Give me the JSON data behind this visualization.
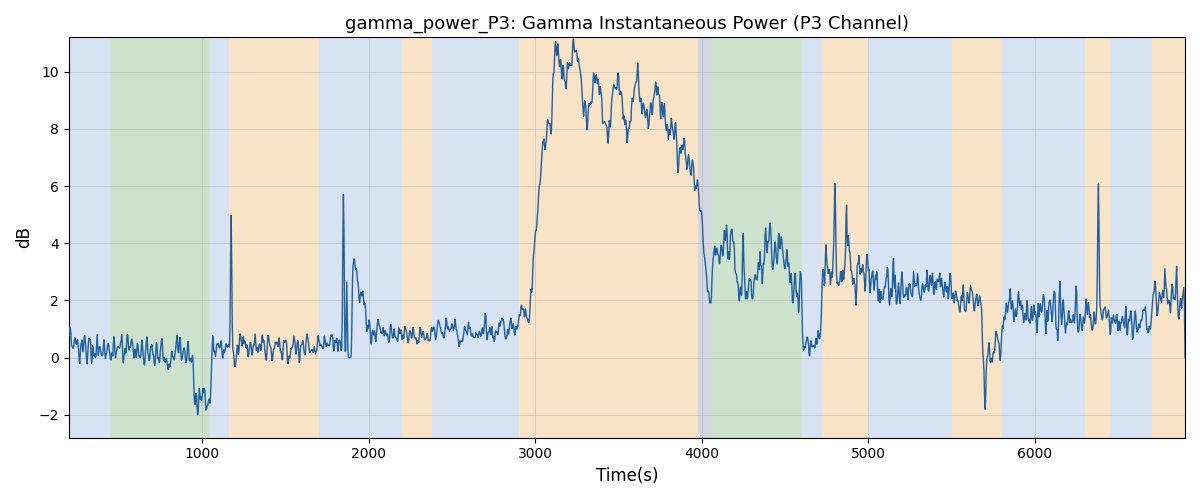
{
  "title": "gamma_power_P3: Gamma Instantaneous Power (P3 Channel)",
  "xlabel": "Time(s)",
  "ylabel": "dB",
  "xlim": [
    200,
    6900
  ],
  "ylim": [
    -2.8,
    11.2
  ],
  "yticks": [
    -2,
    0,
    2,
    4,
    6,
    8,
    10
  ],
  "xticks": [
    1000,
    2000,
    3000,
    4000,
    5000,
    6000
  ],
  "line_color": "#2060a0",
  "line_width": 1.0,
  "background_color": "#ffffff",
  "grid_color": "#b0b0b0",
  "shade_regions": [
    {
      "start": 200,
      "end": 450,
      "color": "#b0c8e8",
      "alpha": 0.5
    },
    {
      "start": 450,
      "end": 1050,
      "color": "#90c090",
      "alpha": 0.45
    },
    {
      "start": 1050,
      "end": 1160,
      "color": "#b0c8e8",
      "alpha": 0.5
    },
    {
      "start": 1160,
      "end": 1700,
      "color": "#f5c890",
      "alpha": 0.5
    },
    {
      "start": 1700,
      "end": 2200,
      "color": "#b0c8e8",
      "alpha": 0.5
    },
    {
      "start": 2200,
      "end": 2380,
      "color": "#f5c890",
      "alpha": 0.5
    },
    {
      "start": 2380,
      "end": 2900,
      "color": "#b0c8e8",
      "alpha": 0.5
    },
    {
      "start": 2900,
      "end": 3100,
      "color": "#f5c890",
      "alpha": 0.5
    },
    {
      "start": 3100,
      "end": 3980,
      "color": "#f5c890",
      "alpha": 0.5
    },
    {
      "start": 3980,
      "end": 4060,
      "color": "#b0b8c8",
      "alpha": 0.55
    },
    {
      "start": 4060,
      "end": 4600,
      "color": "#90c090",
      "alpha": 0.45
    },
    {
      "start": 4600,
      "end": 4720,
      "color": "#b0c8e8",
      "alpha": 0.5
    },
    {
      "start": 4720,
      "end": 5000,
      "color": "#f5c890",
      "alpha": 0.5
    },
    {
      "start": 5000,
      "end": 5500,
      "color": "#b0c8e8",
      "alpha": 0.5
    },
    {
      "start": 5500,
      "end": 5800,
      "color": "#f5c890",
      "alpha": 0.5
    },
    {
      "start": 5800,
      "end": 6300,
      "color": "#b0c8e8",
      "alpha": 0.5
    },
    {
      "start": 6300,
      "end": 6450,
      "color": "#f5c890",
      "alpha": 0.5
    },
    {
      "start": 6450,
      "end": 6700,
      "color": "#b0c8e8",
      "alpha": 0.5
    },
    {
      "start": 6700,
      "end": 6900,
      "color": "#f5c890",
      "alpha": 0.5
    }
  ],
  "title_fontsize": 13,
  "axis_fontsize": 12
}
